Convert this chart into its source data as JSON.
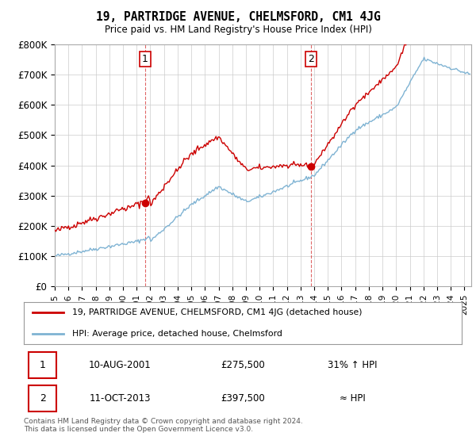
{
  "title": "19, PARTRIDGE AVENUE, CHELMSFORD, CM1 4JG",
  "subtitle": "Price paid vs. HM Land Registry's House Price Index (HPI)",
  "ylim": [
    0,
    800000
  ],
  "yticks": [
    0,
    100000,
    200000,
    300000,
    400000,
    500000,
    600000,
    700000,
    800000
  ],
  "ytick_labels": [
    "£0",
    "£100K",
    "£200K",
    "£300K",
    "£400K",
    "£500K",
    "£600K",
    "£700K",
    "£800K"
  ],
  "xlim_start": 1995.0,
  "xlim_end": 2025.5,
  "background_color": "#ffffff",
  "plot_bg_color": "#ffffff",
  "grid_color": "#cccccc",
  "line1_color": "#cc0000",
  "line2_color": "#7fb3d3",
  "transaction1_date": 2001.607,
  "transaction1_price": 275500,
  "transaction2_date": 2013.786,
  "transaction2_price": 397500,
  "legend_line1": "19, PARTRIDGE AVENUE, CHELMSFORD, CM1 4JG (detached house)",
  "legend_line2": "HPI: Average price, detached house, Chelmsford",
  "footnote1": "Contains HM Land Registry data © Crown copyright and database right 2024.",
  "footnote2": "This data is licensed under the Open Government Licence v3.0.",
  "table_row1_num": "1",
  "table_row1_date": "10-AUG-2001",
  "table_row1_price": "£275,500",
  "table_row1_hpi": "31% ↑ HPI",
  "table_row2_num": "2",
  "table_row2_date": "11-OCT-2013",
  "table_row2_price": "£397,500",
  "table_row2_hpi": "≈ HPI"
}
